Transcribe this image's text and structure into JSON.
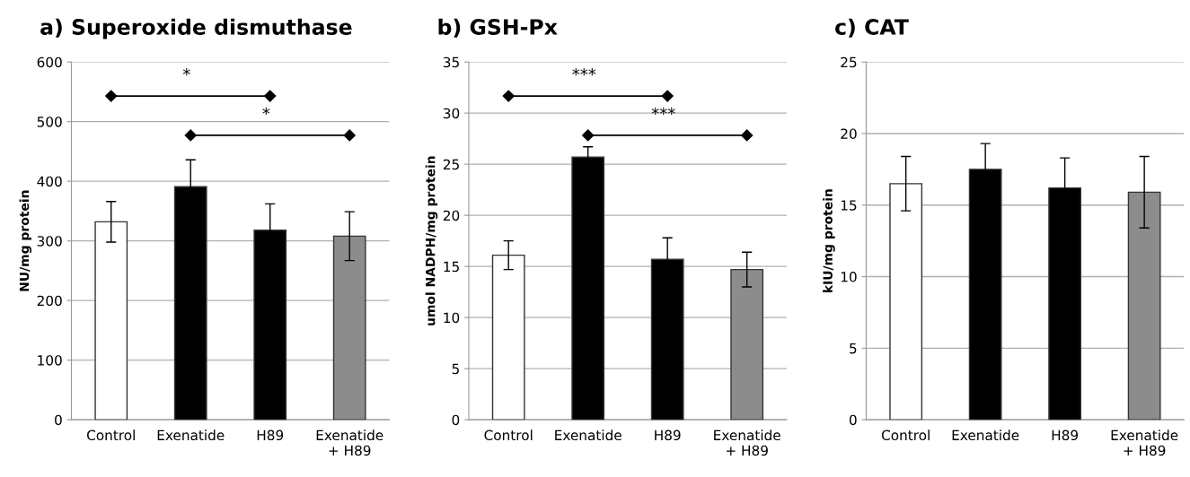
{
  "chart_data": [
    {
      "type": "bar",
      "title": "a) Superoxide dismuthase",
      "ylabel": "NU/mg protein",
      "categories": [
        "Control",
        "Exenatide",
        "H89",
        "Exenatide\n+ H89"
      ],
      "values": [
        332,
        391,
        318,
        308
      ],
      "errors": [
        34,
        45,
        44,
        41
      ],
      "colors": [
        "#ffffff",
        "#000000",
        "#000000",
        "#8c8c8c"
      ],
      "ylim": [
        0,
        600
      ],
      "yticks": [
        0,
        100,
        200,
        300,
        400,
        500,
        600
      ],
      "grid": "y",
      "annotations": [
        "*",
        "*"
      ]
    },
    {
      "type": "bar",
      "title": "b) GSH-Px",
      "ylabel": "umol NADPH/mg protein",
      "categories": [
        "Control",
        "Exenatide",
        "H89",
        "Exenatide\n+ H89"
      ],
      "values": [
        16.1,
        25.7,
        15.7,
        14.7
      ],
      "errors": [
        1.4,
        1.0,
        2.1,
        1.7
      ],
      "colors": [
        "#ffffff",
        "#000000",
        "#000000",
        "#8c8c8c"
      ],
      "ylim": [
        0,
        35
      ],
      "yticks": [
        0,
        5,
        10,
        15,
        20,
        25,
        30,
        35
      ],
      "grid": "y",
      "annotations": [
        "***",
        "***"
      ]
    },
    {
      "type": "bar",
      "title": "c) CAT",
      "ylabel": "kIU/mg protein",
      "categories": [
        "Control",
        "Exenatide",
        "H89",
        "Exenatide\n+ H89"
      ],
      "values": [
        16.5,
        17.5,
        16.2,
        15.9
      ],
      "errors": [
        1.9,
        1.8,
        2.1,
        2.5
      ],
      "colors": [
        "#ffffff",
        "#000000",
        "#000000",
        "#8c8c8c"
      ],
      "ylim": [
        0,
        25
      ],
      "yticks": [
        0,
        5,
        10,
        15,
        20,
        25
      ],
      "grid": "y"
    }
  ]
}
